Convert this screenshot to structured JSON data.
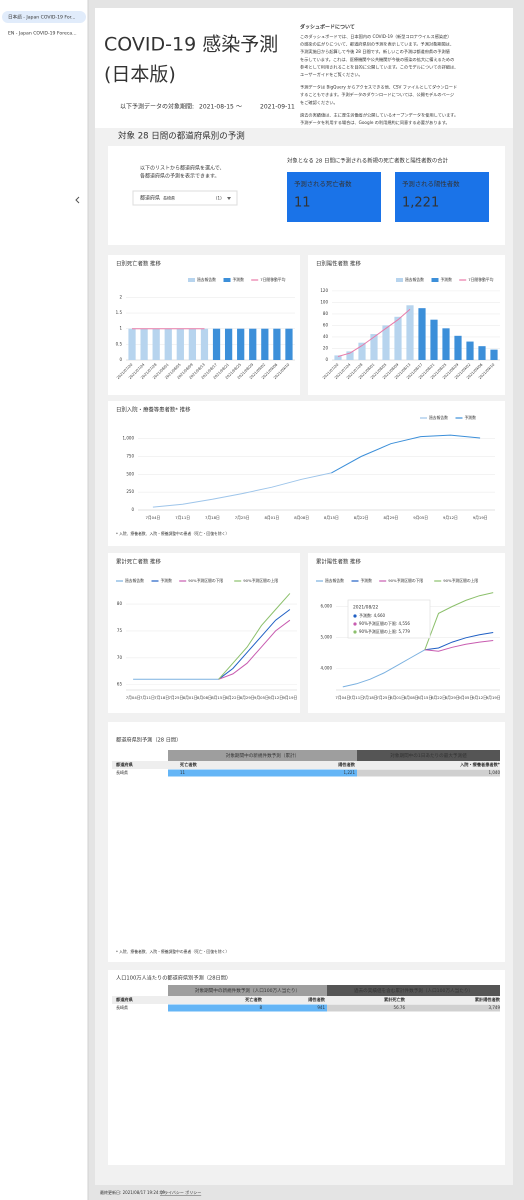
{
  "sidebar": {
    "tabs": [
      "日本語 - Japan COVID-19 For...",
      "EN - Japan COVID-19 Foreca..."
    ]
  },
  "header": {
    "title_line1": "COVID-19 感染予測",
    "title_line2": "(日本版)",
    "period_label": "以下予測データの対象期間:",
    "start": "2021-08-15",
    "separator": "〜",
    "end": "2021-09-11"
  },
  "about": {
    "heading": "ダッシュボードについて",
    "lines": [
      "このダッシュボードでは、日本国内の COVID-19（新型コロナウイルス感染症）",
      "の感染の広がりについて、都道府県別の予測を表示しています。予測対象期間は、",
      "予測実施日から起算して今後 28 日間です。新しいこの予測は都道府県の予測値",
      "を示しています。これは、医療機関や公共機関が今後の感染の拡大に備えるための",
      "参考として利用されることを目的に公開しています。このモデルについての詳細は、",
      "ユーザーガイドをご覧ください。",
      "予測データは BigQuery からアクセスできる他、CSV ファイルとしてダウンロード",
      "することもできます。予測データのダウンロードについては、公開モデルのページ",
      "をご確認ください。",
      "過去の実績値は、主に厚生労働省が公開しているオープンデータを使用しています。",
      "予測データを利用する場合は、Google の利用規約に同意する必要があります。"
    ]
  },
  "section_title": "対象 28 日間の都道府県別の予測",
  "selector": {
    "instructions": [
      "以下のリストから都道府県を選んで、",
      "各都道府県の予測を表示できます。"
    ],
    "label": "都道府県",
    "value": "長崎県",
    "count": "(1)"
  },
  "totals": {
    "heading": "対象となる 28 日間に予測される新規の死亡者数と陽性者数の合計",
    "cards": [
      {
        "label": "予測される死亡者数",
        "value": "11"
      },
      {
        "label": "予測される陽性者数",
        "value": "1,221"
      }
    ]
  },
  "charts": [
    {
      "type": "bar",
      "title": "日別死亡者数 推移",
      "categories": [
        "2021/07/20",
        "2021/07/24",
        "2021/07/28",
        "2021/08/01",
        "2021/08/05",
        "2021/08/09",
        "2021/08/13",
        "2021/08/17",
        "2021/08/21",
        "2021/08/25",
        "2021/08/29",
        "2021/09/02",
        "2021/09/06",
        "2021/09/10"
      ],
      "ylim": [
        0,
        2.3
      ],
      "yticks": [
        0,
        0.5,
        1,
        1.5,
        2
      ],
      "series": [
        {
          "name": "過去報告数",
          "color": "#b7d4ee",
          "type": "bar",
          "values": [
            1,
            1,
            1,
            1,
            1,
            1,
            1,
            null,
            null,
            null,
            null,
            null,
            null,
            null
          ]
        },
        {
          "name": "予測数",
          "color": "#3c8fd9",
          "type": "bar",
          "values": [
            null,
            null,
            null,
            null,
            null,
            null,
            null,
            1,
            1,
            1,
            1,
            1,
            1,
            1
          ]
        },
        {
          "name": "7日間移動平均",
          "color": "#e87aa8",
          "type": "line",
          "values": [
            1,
            1,
            1,
            1,
            1,
            1,
            1,
            null,
            null,
            null,
            null,
            null,
            null,
            null
          ]
        }
      ]
    },
    {
      "type": "bar",
      "title": "日別陽性者数 推移",
      "categories": [
        "2021/07/20",
        "2021/07/24",
        "2021/07/28",
        "2021/08/01",
        "2021/08/05",
        "2021/08/09",
        "2021/08/13",
        "2021/08/17",
        "2021/08/21",
        "2021/08/25",
        "2021/08/29",
        "2021/09/02",
        "2021/09/06",
        "2021/09/10"
      ],
      "ylim": [
        0,
        125
      ],
      "yticks": [
        0,
        20,
        40,
        60,
        80,
        100,
        120
      ],
      "series": [
        {
          "name": "過去報告数",
          "color": "#b7d4ee",
          "type": "bar",
          "values": [
            8,
            15,
            30,
            45,
            60,
            75,
            95,
            null,
            null,
            null,
            null,
            null,
            null,
            null
          ]
        },
        {
          "name": "予測数",
          "color": "#3c8fd9",
          "type": "bar",
          "values": [
            null,
            null,
            null,
            null,
            null,
            null,
            null,
            90,
            70,
            55,
            42,
            32,
            24,
            18
          ]
        },
        {
          "name": "7日間移動平均",
          "color": "#e87aa8",
          "type": "line",
          "values": [
            6,
            12,
            25,
            40,
            55,
            70,
            88,
            null,
            null,
            null,
            null,
            null,
            null,
            null
          ]
        }
      ]
    },
    {
      "type": "line",
      "title": "日別入院・療養等患者数* 推移",
      "note": "* 入院、療養者数、入院・療養調整中の患者（死亡・回復を除く）",
      "categories": [
        "7月04日",
        "7月11日",
        "7月18日",
        "7月25日",
        "8月01日",
        "8月08日",
        "8月15日",
        "8月22日",
        "8月29日",
        "9月05日",
        "9月12日",
        "9月19日"
      ],
      "ylim": [
        0,
        1150
      ],
      "yticks": [
        0,
        250,
        500,
        750,
        {
          "value": 1000,
          "label": "1,000"
        }
      ],
      "series": [
        {
          "name": "過去報告数",
          "color": "#9ec5ea",
          "type": "line",
          "values": [
            40,
            80,
            150,
            230,
            320,
            430,
            520,
            null,
            null,
            null,
            null,
            null
          ]
        },
        {
          "name": "予測数",
          "color": "#3c8fd9",
          "type": "line",
          "values": [
            null,
            null,
            null,
            null,
            null,
            null,
            520,
            750,
            930,
            1030,
            1050,
            1010
          ]
        }
      ]
    },
    {
      "type": "line",
      "title": "累計死亡者数 推移",
      "categories": [
        "7月04日",
        "7月11日",
        "7月18日",
        "7月25日",
        "8月01日",
        "8月08日",
        "8月15日",
        "8月22日",
        "8月29日",
        "9月05日",
        "9月12日",
        "9月19日"
      ],
      "ylim": [
        64,
        83
      ],
      "yticks": [
        65,
        70,
        75,
        80
      ],
      "series": [
        {
          "name": "過去報告数",
          "color": "#7bb1e0",
          "type": "line",
          "values": [
            66,
            66,
            66,
            66,
            66,
            66,
            66,
            null,
            null,
            null,
            null,
            null
          ]
        },
        {
          "name": "予測数",
          "color": "#1f5fc4",
          "type": "line",
          "values": [
            null,
            null,
            null,
            null,
            null,
            null,
            66,
            68,
            71,
            74,
            77,
            79
          ]
        },
        {
          "name": "90%予測区間の下限",
          "color": "#c85cb0",
          "type": "line",
          "values": [
            null,
            null,
            null,
            null,
            null,
            null,
            66,
            67,
            69,
            72,
            75,
            77
          ]
        },
        {
          "name": "90%予測区間の上限",
          "color": "#8cc06c",
          "type": "line",
          "values": [
            null,
            null,
            null,
            null,
            null,
            null,
            66,
            69,
            72,
            76,
            79,
            82
          ]
        }
      ]
    },
    {
      "type": "line",
      "title": "累計陽性者数 推移",
      "categories": [
        "7月04日",
        "7月11日",
        "7月18日",
        "7月25日",
        "8月01日",
        "8月08日",
        "8月15日",
        "8月22日",
        "8月29日",
        "9月05日",
        "9月12日",
        "9月19日"
      ],
      "ylim": [
        3300,
        6600
      ],
      "yticks": [
        {
          "value": 4000,
          "label": "4,000"
        },
        {
          "value": 5000,
          "label": "5,000"
        },
        {
          "value": 6000,
          "label": "6,000"
        }
      ],
      "series": [
        {
          "name": "過去報告数",
          "color": "#7bb1e0",
          "type": "line",
          "values": [
            3400,
            3500,
            3650,
            3850,
            4100,
            4350,
            4600,
            null,
            null,
            null,
            null,
            null
          ]
        },
        {
          "name": "予測数",
          "color": "#1f5fc4",
          "type": "line",
          "values": [
            null,
            null,
            null,
            null,
            null,
            null,
            4600,
            4660,
            4850,
            4990,
            5090,
            5160
          ]
        },
        {
          "name": "90%予測区間の下限",
          "color": "#c85cb0",
          "type": "line",
          "values": [
            null,
            null,
            null,
            null,
            null,
            null,
            4600,
            4556,
            4680,
            4780,
            4850,
            4900
          ]
        },
        {
          "name": "90%予測区間の上限",
          "color": "#8cc06c",
          "type": "line",
          "values": [
            null,
            null,
            null,
            null,
            null,
            null,
            4600,
            5779,
            6000,
            6200,
            6350,
            6450
          ]
        }
      ],
      "tooltip": {
        "date": "2021/08/22",
        "lines": [
          "予測数: 4,660",
          "90%予測区間の下限: 4,556",
          "90%予測区間の上限: 5,779"
        ]
      }
    }
  ],
  "tables": [
    {
      "title": "都道府県別予測（28 日間）",
      "groups": [
        "対象期間中の新規件数予測（累計）",
        "対象期間中の1日あたりの最大予測値"
      ],
      "columns": [
        "都道府県",
        "死亡者数",
        "陽性者数",
        "入院・療養者患者数*"
      ],
      "rows": [
        [
          "長崎県",
          "11",
          "1,221",
          "1,040"
        ]
      ],
      "note": "* 入院、療養者数、入院・療養調整中の患者（死亡・回復を除く）"
    },
    {
      "title": "人口100万人当たりの都道府県別予測（28日間）",
      "groups": [
        "対象期間中の新規件数予測（人口100万人当たり）",
        "過去の実績値を含む累計件数予測（人口100万人当たり）"
      ],
      "columns": [
        "都道府県",
        "死亡者数",
        "陽性者数",
        "累計死亡数",
        "累計陽性者数"
      ],
      "rows": [
        [
          "長崎県",
          "8",
          "941",
          "56.76",
          "3,749"
        ]
      ]
    }
  ],
  "footer": {
    "updated": "最終更新日: 2021/08/17 19:24:09",
    "privacy": "プライバシー ポリシー"
  }
}
